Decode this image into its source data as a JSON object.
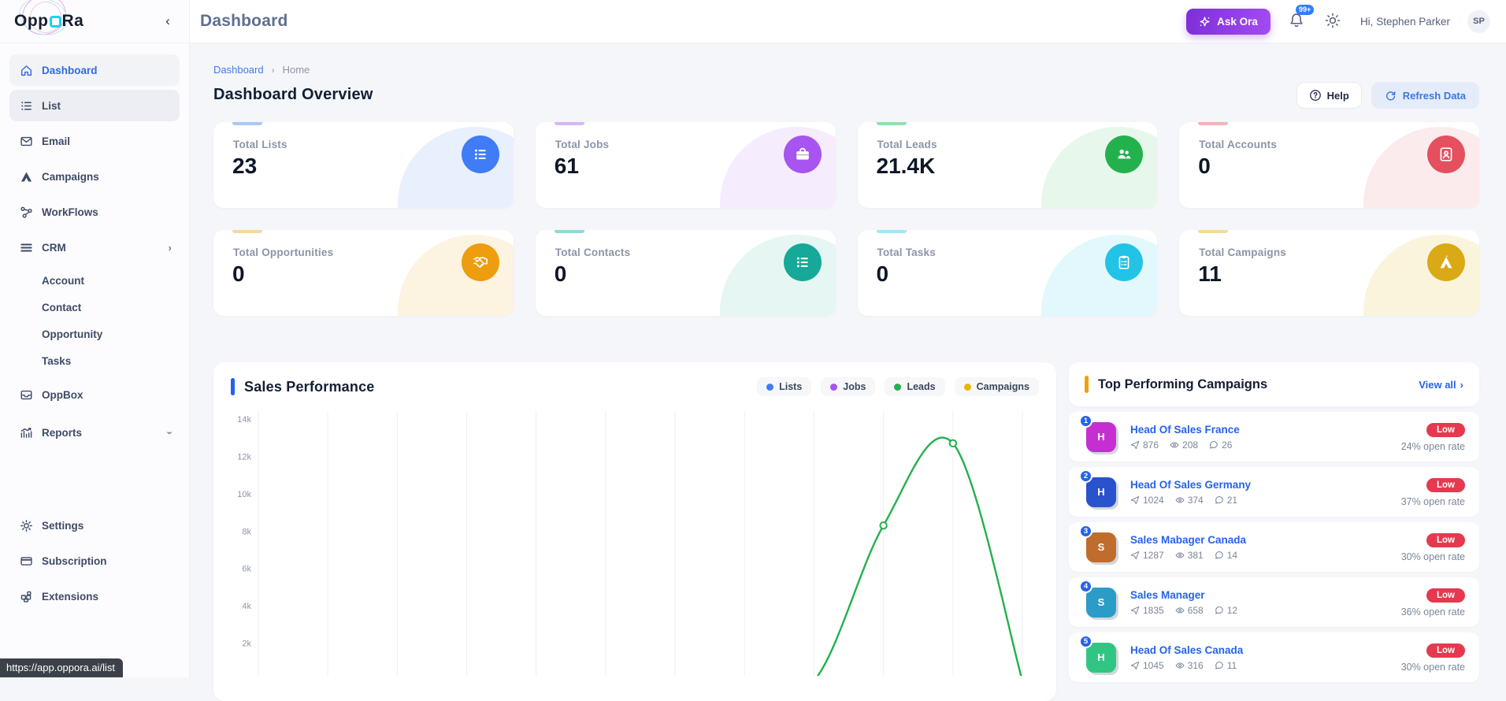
{
  "app": {
    "logo_text": "OppORa",
    "logo_prefix": "Opp",
    "logo_suffix": "Ra"
  },
  "header": {
    "title": "Dashboard",
    "ask_ora_label": "Ask Ora",
    "notification_count": "99+",
    "greeting": "Hi, Stephen Parker",
    "avatar_initials": "SP"
  },
  "sidebar": {
    "items": [
      {
        "label": "Dashboard",
        "icon": "home",
        "state": "active"
      },
      {
        "label": "List",
        "icon": "list",
        "state": "hovered"
      },
      {
        "label": "Email",
        "icon": "envelope"
      },
      {
        "label": "Campaigns",
        "icon": "campaign"
      },
      {
        "label": "WorkFlows",
        "icon": "workflow"
      },
      {
        "label": "CRM",
        "icon": "menu",
        "chevron": "›"
      },
      {
        "label": "Account",
        "sub": true
      },
      {
        "label": "Contact",
        "sub": true
      },
      {
        "label": "Opportunity",
        "sub": true
      },
      {
        "label": "Tasks",
        "sub": true
      },
      {
        "label": "OppBox",
        "icon": "inbox"
      },
      {
        "label": "Reports",
        "icon": "chart",
        "chevron": "›"
      }
    ],
    "footer_items": [
      {
        "label": "Settings",
        "icon": "gear"
      },
      {
        "label": "Subscription",
        "icon": "credit-card"
      },
      {
        "label": "Extensions",
        "icon": "extensions"
      }
    ],
    "link_preview": "https://app.oppora.ai/list"
  },
  "page": {
    "breadcrumb_home": "Dashboard",
    "breadcrumb_sep": "›",
    "breadcrumb_current": "Home",
    "title": "Dashboard Overview",
    "help_label": "Help",
    "refresh_label": "Refresh Data"
  },
  "stats": [
    {
      "label": "Total Lists",
      "value": "23",
      "icon": "list-icon",
      "color": "#3f7cf6",
      "accent": "#aac8f7",
      "tint": "#e9f0fd"
    },
    {
      "label": "Total Jobs",
      "value": "61",
      "icon": "briefcase-icon",
      "color": "#a854f0",
      "accent": "#d8b6f8",
      "tint": "#f5ecfd"
    },
    {
      "label": "Total Leads",
      "value": "21.4K",
      "icon": "people-icon",
      "color": "#23b14d",
      "accent": "#90e0ae",
      "tint": "#e7f7ec"
    },
    {
      "label": "Total Accounts",
      "value": "0",
      "icon": "id-badge-icon",
      "color": "#e4505e",
      "accent": "#f3b3ba",
      "tint": "#fcebec"
    },
    {
      "label": "Total Opportunities",
      "value": "0",
      "icon": "handshake-icon",
      "color": "#ee9d0e",
      "accent": "#f6d7a0",
      "tint": "#fdf3e1"
    },
    {
      "label": "Total Contacts",
      "value": "0",
      "icon": "list-icon",
      "color": "#16a898",
      "accent": "#8edbd0",
      "tint": "#e5f6f3"
    },
    {
      "label": "Total Tasks",
      "value": "0",
      "icon": "clipboard-icon",
      "color": "#22c3e6",
      "accent": "#9fe7f4",
      "tint": "#e3f8fc"
    },
    {
      "label": "Total Campaigns",
      "value": "11",
      "icon": "campaign-icon",
      "color": "#d9a916",
      "accent": "#f2dc96",
      "tint": "#fbf4dd"
    }
  ],
  "chart_card": {
    "title": "Sales Performance",
    "accent": "#2563eb"
  },
  "chart_data": {
    "type": "line",
    "title": "Sales Performance",
    "legend_position": "top-right",
    "grid": "vertical-only",
    "x_labels_visible": false,
    "ylim": [
      0,
      14000
    ],
    "yticks": [
      "2k",
      "4k",
      "6k",
      "8k",
      "10k",
      "12k",
      "14k"
    ],
    "visible_marker_values": [
      8300,
      12700
    ],
    "series": [
      {
        "name": "Lists",
        "color": "#3f7cf6",
        "values": [
          0,
          0,
          0,
          0,
          0,
          0,
          0,
          0,
          0,
          0,
          0,
          0
        ]
      },
      {
        "name": "Jobs",
        "color": "#a854f0",
        "values": [
          0,
          0,
          0,
          0,
          0,
          0,
          0,
          0,
          0,
          0,
          0,
          0
        ]
      },
      {
        "name": "Leads",
        "color": "#22b14c",
        "values": [
          0,
          0,
          0,
          0,
          0,
          0,
          0,
          0,
          0,
          8300,
          12700,
          0
        ]
      },
      {
        "name": "Campaigns",
        "color": "#eab308",
        "values": [
          0,
          0,
          0,
          0,
          0,
          0,
          0,
          0,
          0,
          0,
          0,
          0
        ]
      }
    ]
  },
  "campaigns_panel": {
    "title": "Top Performing Campaigns",
    "accent": "#f59e0b",
    "view_all": "View all",
    "view_all_chevron": "›",
    "badge_color": "#e5394f",
    "items": [
      {
        "rank": "1",
        "initial": "H",
        "avatar_color": "#c52fd1",
        "name": "Head Of Sales France",
        "sent": "876",
        "views": "208",
        "replies": "26",
        "badge": "Low",
        "open_rate": "24% open rate"
      },
      {
        "rank": "2",
        "initial": "H",
        "avatar_color": "#2a52cc",
        "name": "Head Of Sales Germany",
        "sent": "1024",
        "views": "374",
        "replies": "21",
        "badge": "Low",
        "open_rate": "37% open rate"
      },
      {
        "rank": "3",
        "initial": "S",
        "avatar_color": "#c06c2c",
        "name": "Sales Mabager Canada",
        "sent": "1287",
        "views": "381",
        "replies": "14",
        "badge": "Low",
        "open_rate": "30% open rate"
      },
      {
        "rank": "4",
        "initial": "S",
        "avatar_color": "#2b9cc7",
        "name": "Sales Manager",
        "sent": "1835",
        "views": "658",
        "replies": "12",
        "badge": "Low",
        "open_rate": "36% open rate"
      },
      {
        "rank": "5",
        "initial": "H",
        "avatar_color": "#31c583",
        "name": "Head Of Sales Canada",
        "sent": "1045",
        "views": "316",
        "replies": "11",
        "badge": "Low",
        "open_rate": "30% open rate"
      }
    ]
  }
}
